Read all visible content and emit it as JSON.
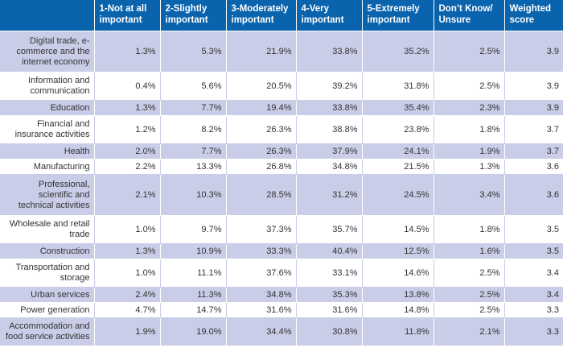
{
  "chart_data": {
    "type": "table",
    "columns": [
      "",
      "1-Not at all important",
      "2-Slightly important",
      "3-Moderately important",
      "4-Very important",
      "5-Extremely important",
      "Don’t Know/ Unsure",
      "Weighted score"
    ],
    "rows": [
      {
        "label": "Digital trade, e-commerce and the internet economy",
        "values": [
          "1.3%",
          "5.3%",
          "21.9%",
          "33.8%",
          "35.2%",
          "2.5%",
          "3.9"
        ]
      },
      {
        "label": "Information and communication",
        "values": [
          "0.4%",
          "5.6%",
          "20.5%",
          "39.2%",
          "31.8%",
          "2.5%",
          "3.9"
        ]
      },
      {
        "label": "Education",
        "values": [
          "1.3%",
          "7.7%",
          "19.4%",
          "33.8%",
          "35.4%",
          "2.3%",
          "3.9"
        ]
      },
      {
        "label": "Financial and insurance activities",
        "values": [
          "1.2%",
          "8.2%",
          "26.3%",
          "38.8%",
          "23.8%",
          "1.8%",
          "3.7"
        ]
      },
      {
        "label": "Health",
        "values": [
          "2.0%",
          "7.7%",
          "26.3%",
          "37.9%",
          "24.1%",
          "1.9%",
          "3.7"
        ]
      },
      {
        "label": "Manufacturing",
        "values": [
          "2.2%",
          "13.3%",
          "26.8%",
          "34.8%",
          "21.5%",
          "1.3%",
          "3.6"
        ]
      },
      {
        "label": "Professional, scientific and technical activities",
        "values": [
          "2.1%",
          "10.3%",
          "28.5%",
          "31.2%",
          "24.5%",
          "3.4%",
          "3.6"
        ]
      },
      {
        "label": "Wholesale and retail trade",
        "values": [
          "1.0%",
          "9.7%",
          "37.3%",
          "35.7%",
          "14.5%",
          "1.8%",
          "3.5"
        ]
      },
      {
        "label": "Construction",
        "values": [
          "1.3%",
          "10.9%",
          "33.3%",
          "40.4%",
          "12.5%",
          "1.6%",
          "3.5"
        ]
      },
      {
        "label": "Transportation and storage",
        "values": [
          "1.0%",
          "11.1%",
          "37.6%",
          "33.1%",
          "14.6%",
          "2.5%",
          "3.4"
        ]
      },
      {
        "label": "Urban services",
        "values": [
          "2.4%",
          "11.3%",
          "34.8%",
          "35.3%",
          "13.8%",
          "2.5%",
          "3.4"
        ]
      },
      {
        "label": "Power generation",
        "values": [
          "4.7%",
          "14.7%",
          "31.6%",
          "31.6%",
          "14.8%",
          "2.5%",
          "3.3"
        ]
      },
      {
        "label": "Accommodation and food service activities",
        "values": [
          "1.9%",
          "19.0%",
          "34.4%",
          "30.8%",
          "11.8%",
          "2.1%",
          "3.3"
        ]
      }
    ]
  },
  "colors": {
    "header_bg": "#0a63ad",
    "stripe_bg": "#c9cde7"
  }
}
